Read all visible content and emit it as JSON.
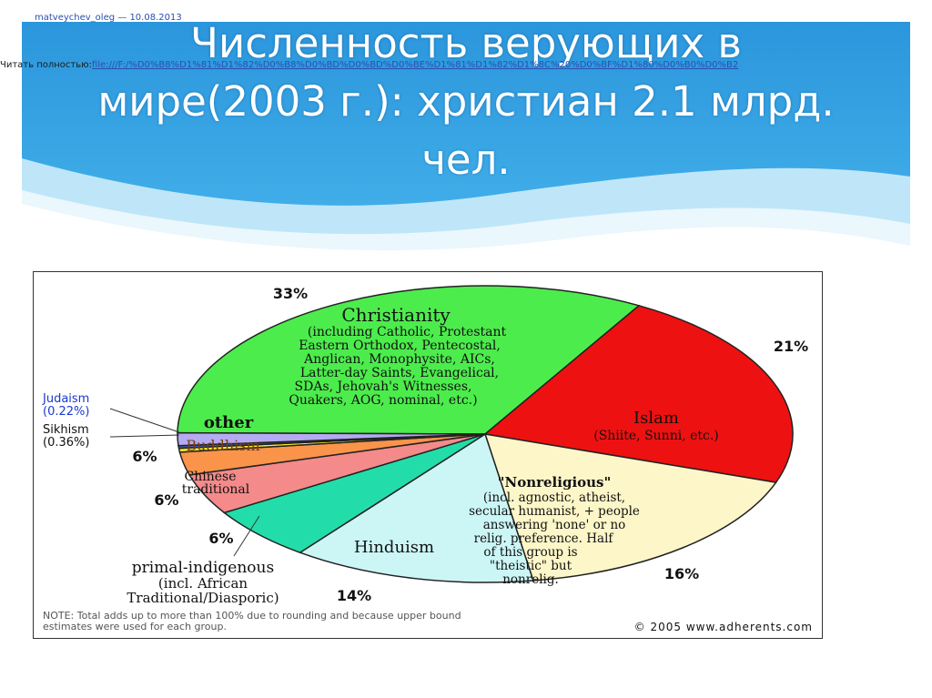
{
  "meta": {
    "author_line": "matveychev_oleg — 10.08.2013",
    "read_full_label": "Читать полностью:",
    "read_full_url": "file:///F:/%D0%B8%D1%81%D1%82%D0%B8%D0%BD%D0%BD%D0%BE%D1%81%D1%82%D1%8C%20%D0%BF%D1%80%D0%B0%D0%B2"
  },
  "slide": {
    "title_line1": "Численность верующих в",
    "title_line2": "мире(2003 г.): христиан 2.1 млрд.",
    "title_line3": "чел.",
    "banner_color": "#2e9ee0"
  },
  "chart_data": {
    "type": "pie",
    "slices": [
      {
        "name": "Christianity",
        "value": 33,
        "pct_label": "33%",
        "color": "#4cec4c",
        "sub": [
          "(including Catholic, Protestant",
          "Eastern Orthodox, Pentecostal,",
          "Anglican, Monophysite, AICs,",
          "Latter-day Saints, Evangelical,",
          "SDAs, Jehovah's Witnesses,",
          "Quakers, AOG, nominal, etc.)"
        ]
      },
      {
        "name": "Islam",
        "value": 21,
        "pct_label": "21%",
        "color": "#ee1111",
        "sub": [
          "(Shiite, Sunni, etc.)"
        ]
      },
      {
        "name": "\"Nonreligious\"",
        "value": 16,
        "pct_label": "16%",
        "color": "#fdf6c8",
        "sub": [
          "(incl. agnostic, atheist,",
          "secular humanist, + people",
          "answering 'none' or no",
          "relig. preference. Half",
          "of this group is",
          "\"theistic\" but",
          "nonrelig."
        ]
      },
      {
        "name": "Hinduism",
        "value": 14,
        "pct_label": "14%",
        "color": "#ccf6f6",
        "sub": []
      },
      {
        "name": "primal-indigenous",
        "value": 6,
        "pct_label": "6%",
        "color": "#22ddaa",
        "sub": [
          "(incl. African",
          "Traditional/Diasporic)"
        ]
      },
      {
        "name": "Chinese traditional",
        "value": 6,
        "pct_label": "6%",
        "color": "#f48a8a",
        "sub": []
      },
      {
        "name": "Buddhism",
        "value": 6,
        "pct_label": "6%",
        "color": "#f9944a",
        "sub": []
      },
      {
        "name": "Sikhism",
        "value": 0.36,
        "pct_label": "(0.36%)",
        "color": "#f4ee20",
        "sub": []
      },
      {
        "name": "Judaism",
        "value": 0.22,
        "pct_label": "(0.22%)",
        "color": "#3f5fd0",
        "sub": []
      },
      {
        "name": "other",
        "value": 3.4,
        "pct_label": "",
        "color": "#b5abf2",
        "sub": []
      }
    ],
    "note": [
      "NOTE: Total adds up to more than 100% due to rounding and because upper bound",
      "estimates were used for each group."
    ],
    "copyright": "© 2005 www.adherents.com"
  }
}
